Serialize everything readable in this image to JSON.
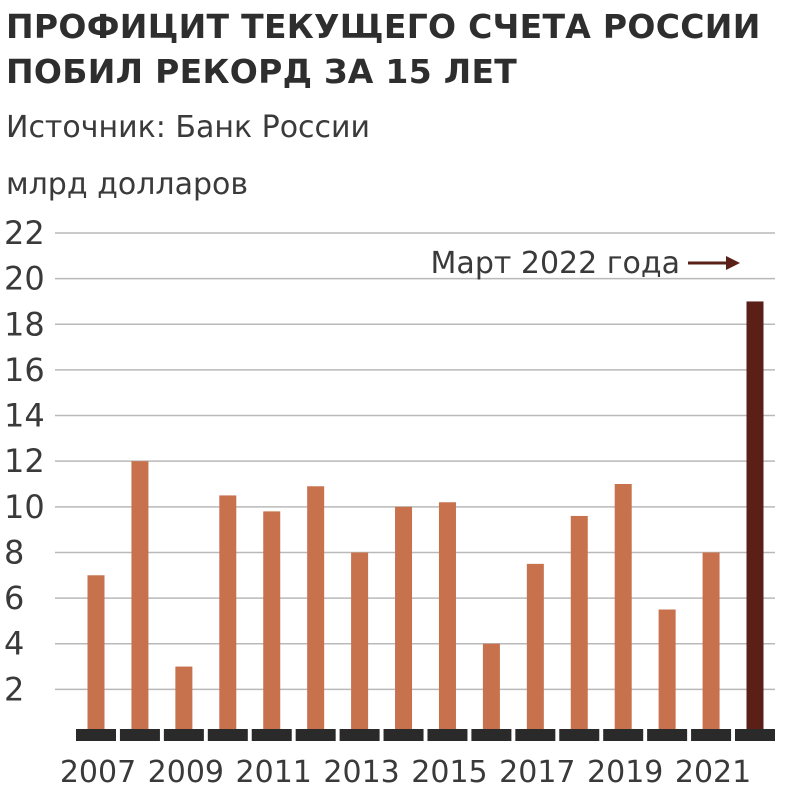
{
  "title_line1": "ПРОФИЦИТ ТЕКУЩЕГО СЧЕТА РОССИИ",
  "title_line2": "ПОБИЛ РЕКОРД ЗА 15 ЛЕТ",
  "source": "Источник: Банк России",
  "unit": "млрд долларов",
  "annotation": "Март 2022 года",
  "colors": {
    "bar": "#c8714d",
    "highlight": "#5a1f17",
    "baseline": "#2a2a2a",
    "grid": "#b9b9b9",
    "text": "#3a3a3a"
  },
  "chart_data": {
    "type": "bar",
    "title": "ПРОФИЦИТ ТЕКУЩЕГО СЧЕТА РОССИИ ПОБИЛ РЕКОРД ЗА 15 ЛЕТ",
    "ylabel": "млрд долларов",
    "xlabel": "",
    "ylim": [
      0,
      22
    ],
    "yticks": [
      2,
      4,
      6,
      8,
      10,
      12,
      14,
      16,
      18,
      20,
      22
    ],
    "grid": true,
    "categories": [
      "2007",
      "2008",
      "2009",
      "2010",
      "2011",
      "2012",
      "2013",
      "2014",
      "2015",
      "2016",
      "2017",
      "2018",
      "2019",
      "2020",
      "2021",
      "Март 2022"
    ],
    "xtick_labels": [
      "2007",
      "2009",
      "2011",
      "2013",
      "2015",
      "2017",
      "2019",
      "2021"
    ],
    "values": [
      7,
      12,
      3,
      10.5,
      9.8,
      10.9,
      8,
      10,
      10.2,
      4,
      7.5,
      9.6,
      11,
      5.5,
      8,
      19
    ],
    "highlight_index": 15
  }
}
